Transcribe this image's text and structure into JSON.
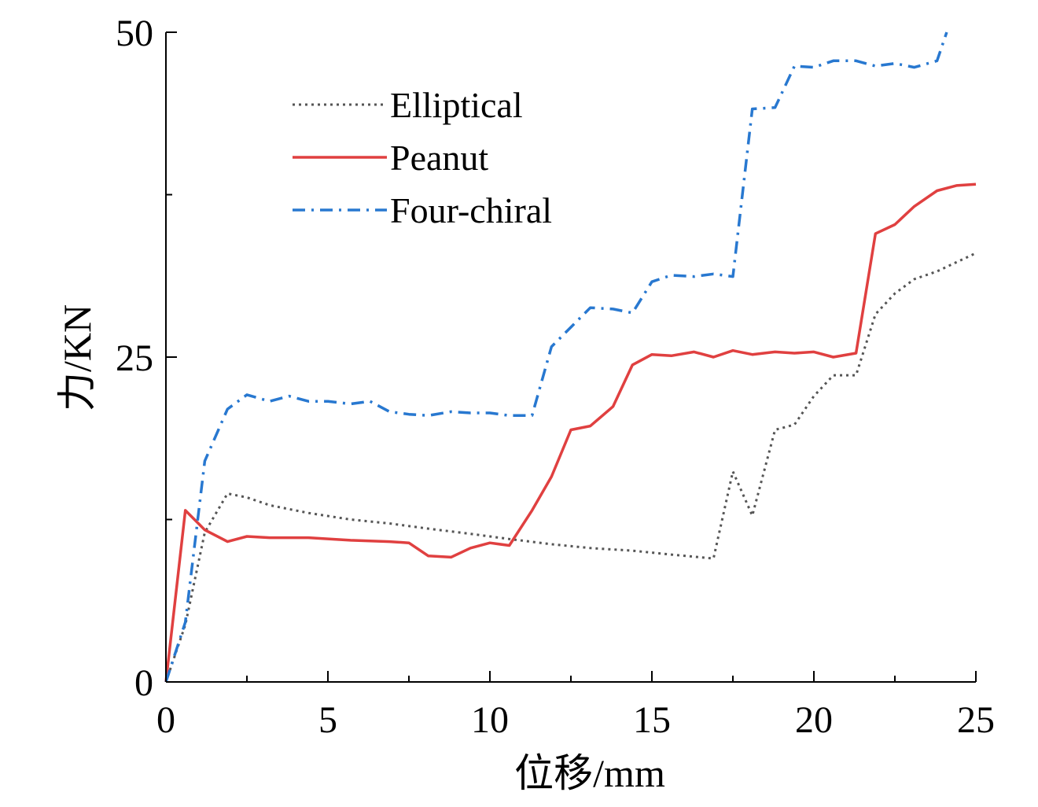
{
  "chart_data": {
    "type": "line",
    "title": "",
    "xlabel": "位移/mm",
    "ylabel": "力/KN",
    "xlim": [
      0,
      25
    ],
    "ylim": [
      0,
      50
    ],
    "x_ticks": [
      0,
      5,
      10,
      15,
      20,
      25
    ],
    "x_tick_labels": [
      "0",
      "5",
      "10",
      "15",
      "20",
      "25"
    ],
    "y_ticks": [
      0,
      25,
      50
    ],
    "y_tick_labels": [
      "0",
      "25",
      "50"
    ],
    "grid": false,
    "legend_position": "top-left",
    "series": [
      {
        "name": "Elliptical",
        "color": "#555555",
        "style": "dotted",
        "points": [
          [
            0,
            0
          ],
          [
            0.6,
            4.4
          ],
          [
            1.2,
            11.5
          ],
          [
            1.9,
            14.5
          ],
          [
            2.5,
            14.2
          ],
          [
            3.2,
            13.6
          ],
          [
            4.4,
            13.0
          ],
          [
            5.7,
            12.5
          ],
          [
            6.9,
            12.2
          ],
          [
            8.1,
            11.8
          ],
          [
            9.4,
            11.4
          ],
          [
            10.6,
            11.0
          ],
          [
            11.9,
            10.6
          ],
          [
            13.1,
            10.3
          ],
          [
            14.4,
            10.1
          ],
          [
            15.6,
            9.8
          ],
          [
            16.9,
            9.5
          ],
          [
            17.5,
            16.2
          ],
          [
            18.1,
            12.8
          ],
          [
            18.8,
            19.4
          ],
          [
            19.4,
            19.8
          ],
          [
            20.0,
            22.0
          ],
          [
            20.6,
            23.6
          ],
          [
            21.3,
            23.6
          ],
          [
            21.9,
            28.3
          ],
          [
            22.5,
            29.9
          ],
          [
            23.1,
            31.0
          ],
          [
            23.8,
            31.6
          ],
          [
            24.4,
            32.3
          ],
          [
            25.0,
            33.0
          ]
        ]
      },
      {
        "name": "Peanut",
        "color": "#e04040",
        "style": "solid",
        "points": [
          [
            0,
            0
          ],
          [
            0.6,
            13.2
          ],
          [
            1.2,
            11.7
          ],
          [
            1.9,
            10.8
          ],
          [
            2.5,
            11.2
          ],
          [
            3.2,
            11.1
          ],
          [
            4.4,
            11.1
          ],
          [
            5.7,
            10.9
          ],
          [
            6.9,
            10.8
          ],
          [
            7.5,
            10.7
          ],
          [
            8.1,
            9.7
          ],
          [
            8.8,
            9.6
          ],
          [
            9.4,
            10.3
          ],
          [
            10.0,
            10.7
          ],
          [
            10.6,
            10.5
          ],
          [
            11.3,
            13.2
          ],
          [
            11.9,
            15.8
          ],
          [
            12.5,
            19.4
          ],
          [
            13.1,
            19.7
          ],
          [
            13.8,
            21.2
          ],
          [
            14.4,
            24.4
          ],
          [
            15.0,
            25.2
          ],
          [
            15.6,
            25.1
          ],
          [
            16.3,
            25.4
          ],
          [
            16.9,
            25.0
          ],
          [
            17.5,
            25.5
          ],
          [
            18.1,
            25.2
          ],
          [
            18.8,
            25.4
          ],
          [
            19.4,
            25.3
          ],
          [
            20.0,
            25.4
          ],
          [
            20.6,
            25.0
          ],
          [
            21.3,
            25.3
          ],
          [
            21.9,
            34.5
          ],
          [
            22.5,
            35.2
          ],
          [
            23.1,
            36.6
          ],
          [
            23.8,
            37.8
          ],
          [
            24.4,
            38.2
          ],
          [
            25.0,
            38.3
          ]
        ]
      },
      {
        "name": "Four-chiral",
        "color": "#2878d0",
        "style": "dashdot",
        "points": [
          [
            0,
            0
          ],
          [
            0.6,
            4.6
          ],
          [
            1.2,
            17.0
          ],
          [
            1.9,
            21.0
          ],
          [
            2.5,
            22.1
          ],
          [
            3.2,
            21.6
          ],
          [
            3.8,
            22.0
          ],
          [
            4.4,
            21.6
          ],
          [
            5.0,
            21.6
          ],
          [
            5.7,
            21.4
          ],
          [
            6.3,
            21.6
          ],
          [
            6.9,
            20.8
          ],
          [
            7.5,
            20.6
          ],
          [
            8.1,
            20.5
          ],
          [
            8.8,
            20.8
          ],
          [
            9.4,
            20.7
          ],
          [
            10.0,
            20.7
          ],
          [
            10.6,
            20.5
          ],
          [
            11.3,
            20.5
          ],
          [
            11.9,
            25.8
          ],
          [
            12.5,
            27.3
          ],
          [
            13.1,
            28.8
          ],
          [
            13.8,
            28.7
          ],
          [
            14.4,
            28.4
          ],
          [
            15.0,
            30.8
          ],
          [
            15.6,
            31.3
          ],
          [
            16.3,
            31.2
          ],
          [
            16.9,
            31.4
          ],
          [
            17.5,
            31.2
          ],
          [
            18.1,
            44.1
          ],
          [
            18.8,
            44.2
          ],
          [
            19.4,
            47.4
          ],
          [
            20.0,
            47.3
          ],
          [
            20.6,
            47.8
          ],
          [
            21.3,
            47.8
          ],
          [
            21.9,
            47.4
          ],
          [
            22.5,
            47.6
          ],
          [
            23.1,
            47.3
          ],
          [
            23.8,
            47.8
          ],
          [
            24.1,
            50.0
          ]
        ]
      }
    ]
  }
}
